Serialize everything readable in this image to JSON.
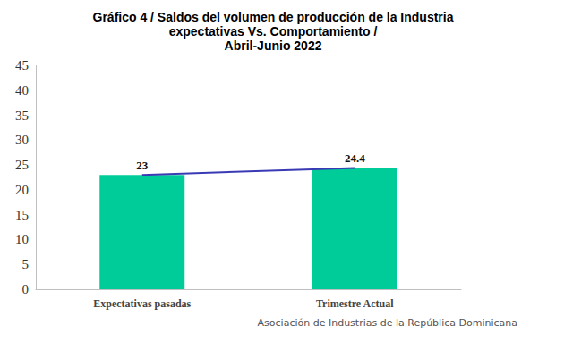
{
  "chart_data": {
    "type": "bar",
    "title": "Gráfico 4 / Saldos del volumen de producción de la Industria\nexpectativas Vs. Comportamiento /\nAbril-Junio 2022",
    "annotation": "Asociación de Industrias de la República Dominicana",
    "categories": [
      "Expectativas pasadas",
      "Trimestre Actual"
    ],
    "series": [
      {
        "type": "bar",
        "color": "#00cc99",
        "values": [
          23,
          24.4
        ]
      },
      {
        "type": "line",
        "color": "#3a3ab5",
        "values": [
          23,
          24.4
        ]
      }
    ],
    "ylim": [
      0,
      45
    ],
    "yticks": [
      0,
      5,
      10,
      15,
      20,
      25,
      30,
      35,
      40,
      45
    ],
    "grid": false,
    "data_labels": true
  }
}
